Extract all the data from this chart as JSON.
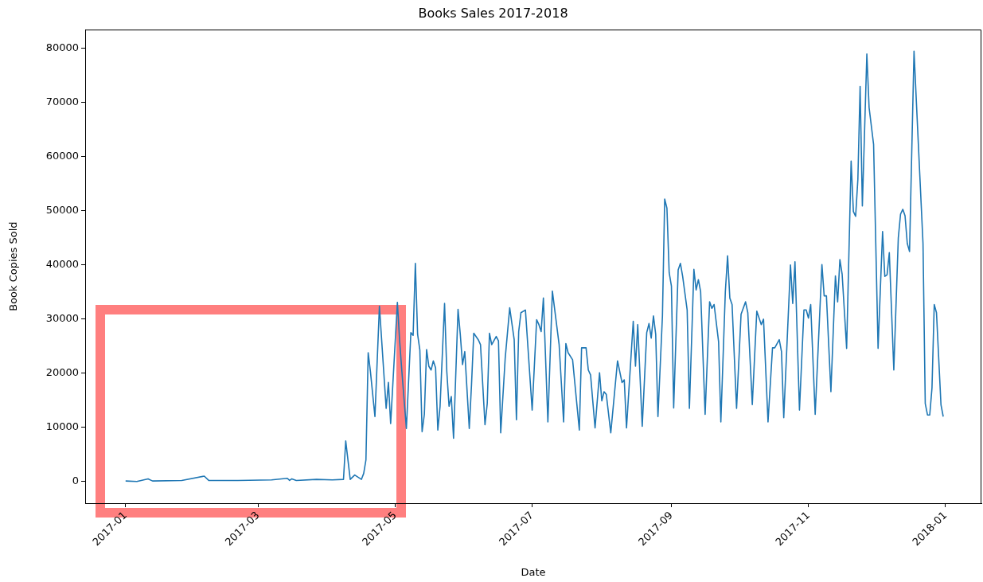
{
  "chart_data": {
    "type": "line",
    "title": "Books Sales 2017-2018",
    "xlabel": "Date",
    "ylabel": "Book Copies Sold",
    "xlim": [
      "2016-12-14",
      "2018-01-17"
    ],
    "xticks": [
      "2017-01",
      "2017-03",
      "2017-05",
      "2017-07",
      "2017-09",
      "2017-11",
      "2018-01"
    ],
    "ylim": [
      -4000,
      83500
    ],
    "yticks": [
      0,
      10000,
      20000,
      30000,
      40000,
      50000,
      60000,
      70000,
      80000
    ],
    "grid": false,
    "legend": false,
    "marker": "none",
    "line_style": "solid",
    "series": [
      {
        "color": "#1f77b4",
        "x": [
          "2017-01-01",
          "2017-01-06",
          "2017-01-11",
          "2017-01-13",
          "2017-01-26",
          "2017-02-05",
          "2017-02-07",
          "2017-02-20",
          "2017-03-07",
          "2017-03-14",
          "2017-03-15",
          "2017-03-16",
          "2017-03-18",
          "2017-03-27",
          "2017-04-03",
          "2017-04-08",
          "2017-04-09",
          "2017-04-11",
          "2017-04-13",
          "2017-04-16",
          "2017-04-17",
          "2017-04-18",
          "2017-04-19",
          "2017-04-20",
          "2017-04-22",
          "2017-04-24",
          "2017-04-27",
          "2017-04-28",
          "2017-04-29",
          "2017-05-02",
          "2017-05-03",
          "2017-05-04",
          "2017-05-06",
          "2017-05-08",
          "2017-05-09",
          "2017-05-10",
          "2017-05-11",
          "2017-05-12",
          "2017-05-13",
          "2017-05-14",
          "2017-05-15",
          "2017-05-16",
          "2017-05-17",
          "2017-05-18",
          "2017-05-19",
          "2017-05-20",
          "2017-05-21",
          "2017-05-23",
          "2017-05-24",
          "2017-05-25",
          "2017-05-26",
          "2017-05-27",
          "2017-05-29",
          "2017-05-30",
          "2017-05-31",
          "2017-06-01",
          "2017-06-03",
          "2017-06-04",
          "2017-06-05",
          "2017-06-07",
          "2017-06-08",
          "2017-06-10",
          "2017-06-11",
          "2017-06-12",
          "2017-06-13",
          "2017-06-15",
          "2017-06-16",
          "2017-06-17",
          "2017-06-19",
          "2017-06-21",
          "2017-06-23",
          "2017-06-24",
          "2017-06-25",
          "2017-06-26",
          "2017-06-28",
          "2017-07-01",
          "2017-07-03",
          "2017-07-04",
          "2017-07-05",
          "2017-07-06",
          "2017-07-08",
          "2017-07-10",
          "2017-07-13",
          "2017-07-15",
          "2017-07-16",
          "2017-07-17",
          "2017-07-19",
          "2017-07-22",
          "2017-07-23",
          "2017-07-25",
          "2017-07-26",
          "2017-07-27",
          "2017-07-29",
          "2017-07-31",
          "2017-08-01",
          "2017-08-02",
          "2017-08-03",
          "2017-08-05",
          "2017-08-08",
          "2017-08-10",
          "2017-08-11",
          "2017-08-12",
          "2017-08-15",
          "2017-08-16",
          "2017-08-17",
          "2017-08-19",
          "2017-08-21",
          "2017-08-22",
          "2017-08-23",
          "2017-08-24",
          "2017-08-25",
          "2017-08-26",
          "2017-08-28",
          "2017-08-29",
          "2017-08-30",
          "2017-08-31",
          "2017-09-01",
          "2017-09-02",
          "2017-09-04",
          "2017-09-05",
          "2017-09-06",
          "2017-09-08",
          "2017-09-09",
          "2017-09-11",
          "2017-09-12",
          "2017-09-13",
          "2017-09-14",
          "2017-09-16",
          "2017-09-18",
          "2017-09-19",
          "2017-09-20",
          "2017-09-22",
          "2017-09-23",
          "2017-09-25",
          "2017-09-26",
          "2017-09-27",
          "2017-09-28",
          "2017-09-30",
          "2017-10-02",
          "2017-10-04",
          "2017-10-05",
          "2017-10-07",
          "2017-10-09",
          "2017-10-11",
          "2017-10-12",
          "2017-10-14",
          "2017-10-16",
          "2017-10-17",
          "2017-10-19",
          "2017-10-20",
          "2017-10-21",
          "2017-10-24",
          "2017-10-25",
          "2017-10-26",
          "2017-10-28",
          "2017-10-30",
          "2017-10-31",
          "2017-11-01",
          "2017-11-02",
          "2017-11-04",
          "2017-11-07",
          "2017-11-08",
          "2017-11-09",
          "2017-11-11",
          "2017-11-13",
          "2017-11-14",
          "2017-11-15",
          "2017-11-16",
          "2017-11-18",
          "2017-11-20",
          "2017-11-21",
          "2017-11-22",
          "2017-11-23",
          "2017-11-24",
          "2017-11-25",
          "2017-11-27",
          "2017-11-28",
          "2017-11-30",
          "2017-12-02",
          "2017-12-04",
          "2017-12-05",
          "2017-12-06",
          "2017-12-07",
          "2017-12-09",
          "2017-12-11",
          "2017-12-12",
          "2017-12-13",
          "2017-12-14",
          "2017-12-15",
          "2017-12-16",
          "2017-12-18",
          "2017-12-20",
          "2017-12-22",
          "2017-12-23",
          "2017-12-24",
          "2017-12-25",
          "2017-12-26",
          "2017-12-27",
          "2017-12-28",
          "2017-12-30",
          "2017-12-31"
        ],
        "values": [
          100,
          0,
          500,
          100,
          200,
          1000,
          200,
          200,
          300,
          600,
          200,
          500,
          200,
          400,
          300,
          400,
          7500,
          400,
          1200,
          400,
          1500,
          4000,
          23800,
          20300,
          12000,
          32400,
          13500,
          18300,
          10700,
          33100,
          26000,
          20300,
          9800,
          27500,
          27000,
          40300,
          27200,
          24300,
          9200,
          12400,
          24400,
          21300,
          20600,
          22300,
          21000,
          9500,
          13900,
          32900,
          20300,
          13900,
          15700,
          8000,
          31800,
          27200,
          21600,
          24000,
          9800,
          17900,
          27400,
          26200,
          25300,
          10500,
          14400,
          27400,
          25300,
          26800,
          26000,
          9000,
          22800,
          32100,
          26200,
          11400,
          27700,
          31200,
          31700,
          13200,
          29900,
          29000,
          27700,
          33900,
          11000,
          35200,
          25300,
          11000,
          25500,
          23800,
          22500,
          9500,
          24700,
          24700,
          20600,
          19700,
          9900,
          20100,
          14900,
          16600,
          16100,
          9000,
          22300,
          18300,
          18800,
          9900,
          29600,
          21300,
          29000,
          10200,
          27500,
          29200,
          26500,
          30600,
          27200,
          12000,
          30600,
          52200,
          50500,
          38600,
          36100,
          13600,
          39100,
          40300,
          37900,
          31700,
          13500,
          39200,
          35400,
          37300,
          35100,
          12400,
          33200,
          32000,
          32700,
          25800,
          11000,
          35100,
          41700,
          33900,
          32700,
          13500,
          30900,
          33200,
          31200,
          14200,
          31500,
          29000,
          30000,
          11000,
          24700,
          24700,
          26200,
          24000,
          11800,
          40000,
          32900,
          40600,
          13200,
          31700,
          31700,
          30200,
          32700,
          12400,
          40100,
          34300,
          34300,
          16600,
          38000,
          33200,
          41000,
          38300,
          24600,
          59200,
          49900,
          49000,
          55800,
          73000,
          50900,
          79000,
          69100,
          62300,
          24600,
          46200,
          37900,
          38200,
          42300,
          20600,
          45000,
          49400,
          50300,
          49100,
          44000,
          42500,
          79500,
          61700,
          44000,
          14400,
          12300,
          12300,
          17300,
          32700,
          31200,
          14200,
          12000
        ]
      }
    ]
  }
}
